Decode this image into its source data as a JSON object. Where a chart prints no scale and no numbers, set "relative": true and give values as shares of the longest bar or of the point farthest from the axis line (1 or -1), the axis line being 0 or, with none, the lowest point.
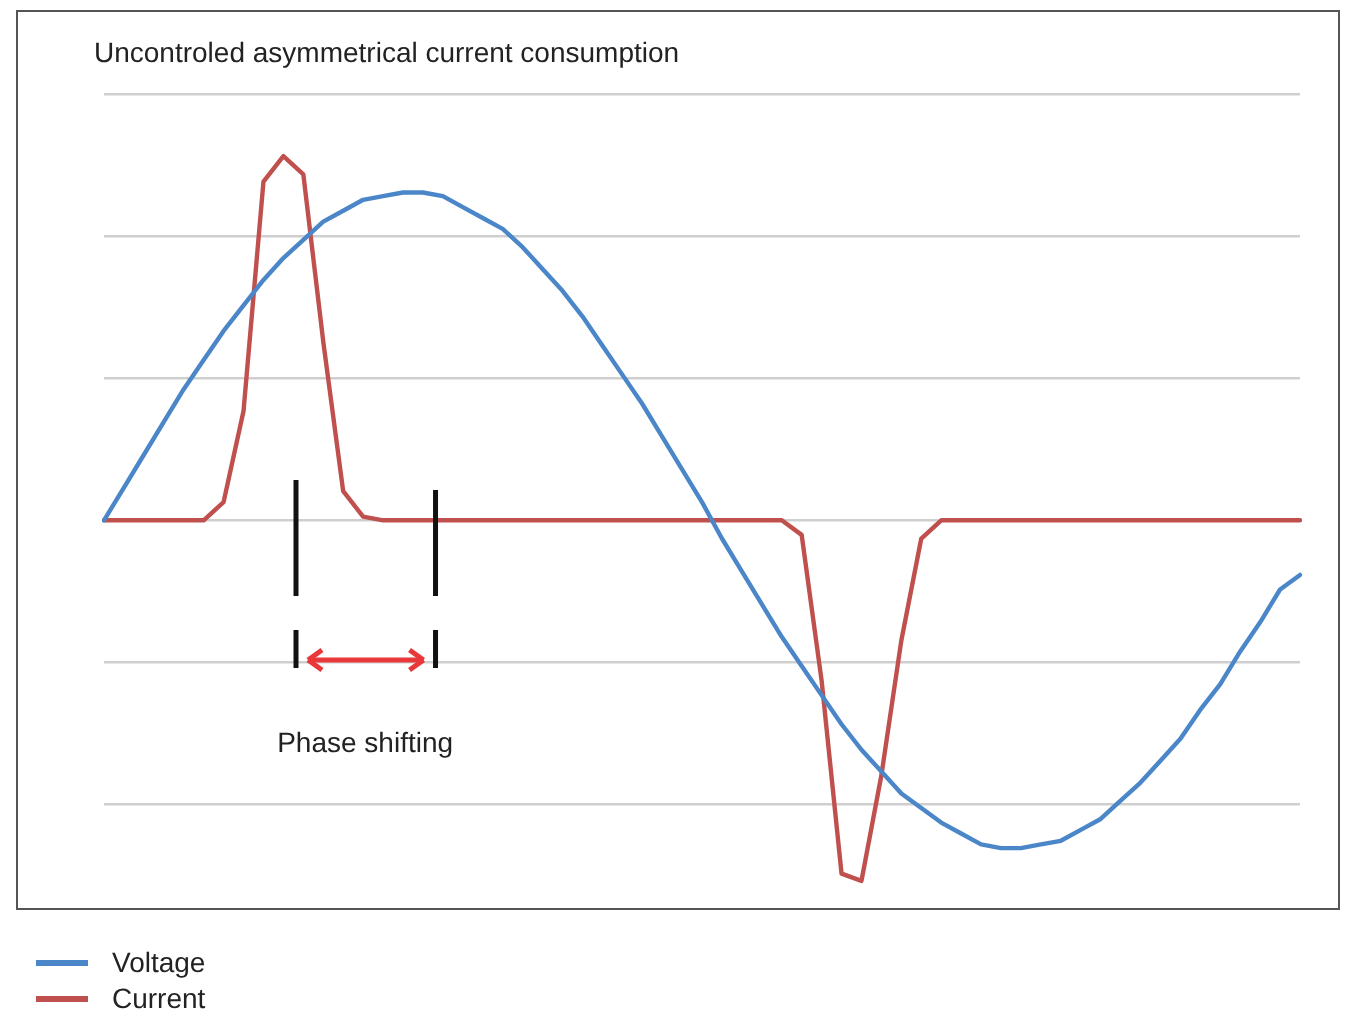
{
  "chart_data": {
    "type": "line",
    "title": "Uncontroled asymmetrical current consumption",
    "relative": true,
    "grid": "y",
    "legend": "bottom left",
    "marker": "none",
    "line_style": "solid",
    "categories": [
      null,
      null,
      null,
      null,
      null,
      null,
      null,
      null,
      null,
      null,
      null,
      null,
      null,
      null,
      null,
      null,
      null,
      null,
      null,
      null,
      null,
      null,
      null,
      null,
      null,
      null,
      null,
      null,
      null,
      null,
      null,
      null,
      null,
      null,
      null,
      null,
      null,
      null,
      null,
      null,
      null,
      null,
      null,
      null,
      null,
      null,
      null,
      null,
      null,
      null,
      null,
      null,
      null,
      null,
      null,
      null,
      null,
      null,
      null,
      null,
      null
    ],
    "series": [
      {
        "name": "Voltage",
        "color": "#4a86c8",
        "values": [
          0,
          0.09,
          0.18,
          0.27,
          0.36,
          0.44,
          0.52,
          0.59,
          0.66,
          0.72,
          0.77,
          0.82,
          0.85,
          0.88,
          0.89,
          0.9,
          0.9,
          0.89,
          0.86,
          0.83,
          0.8,
          0.75,
          0.69,
          0.63,
          0.56,
          0.48,
          0.4,
          0.32,
          0.23,
          0.14,
          0.05,
          -0.05,
          -0.14,
          -0.23,
          -0.32,
          -0.4,
          -0.48,
          -0.56,
          -0.63,
          -0.69,
          -0.75,
          -0.79,
          -0.83,
          -0.86,
          -0.89,
          -0.9,
          -0.9,
          -0.89,
          -0.88,
          -0.85,
          -0.82,
          -0.77,
          -0.72,
          -0.66,
          -0.6,
          -0.52,
          -0.45,
          -0.36,
          -0.28,
          -0.19,
          -0.15
        ]
      },
      {
        "name": "Current",
        "color": "#c0504d",
        "values": [
          0,
          0,
          0,
          0,
          0,
          0,
          0.05,
          0.3,
          0.93,
          1,
          0.95,
          0.49,
          0.08,
          0.01,
          0,
          0,
          0,
          0,
          0,
          0,
          0,
          0,
          0,
          0,
          0,
          0,
          0,
          0,
          0,
          0,
          0,
          0,
          0,
          0,
          0,
          -0.04,
          -0.44,
          -0.97,
          -0.99,
          -0.7,
          -0.33,
          -0.05,
          0,
          0,
          0,
          0,
          0,
          0,
          0,
          0,
          0,
          0,
          0,
          0,
          0,
          0,
          0,
          0,
          0,
          0,
          0
        ]
      }
    ],
    "annotations": [
      "Phase shifting"
    ]
  }
}
